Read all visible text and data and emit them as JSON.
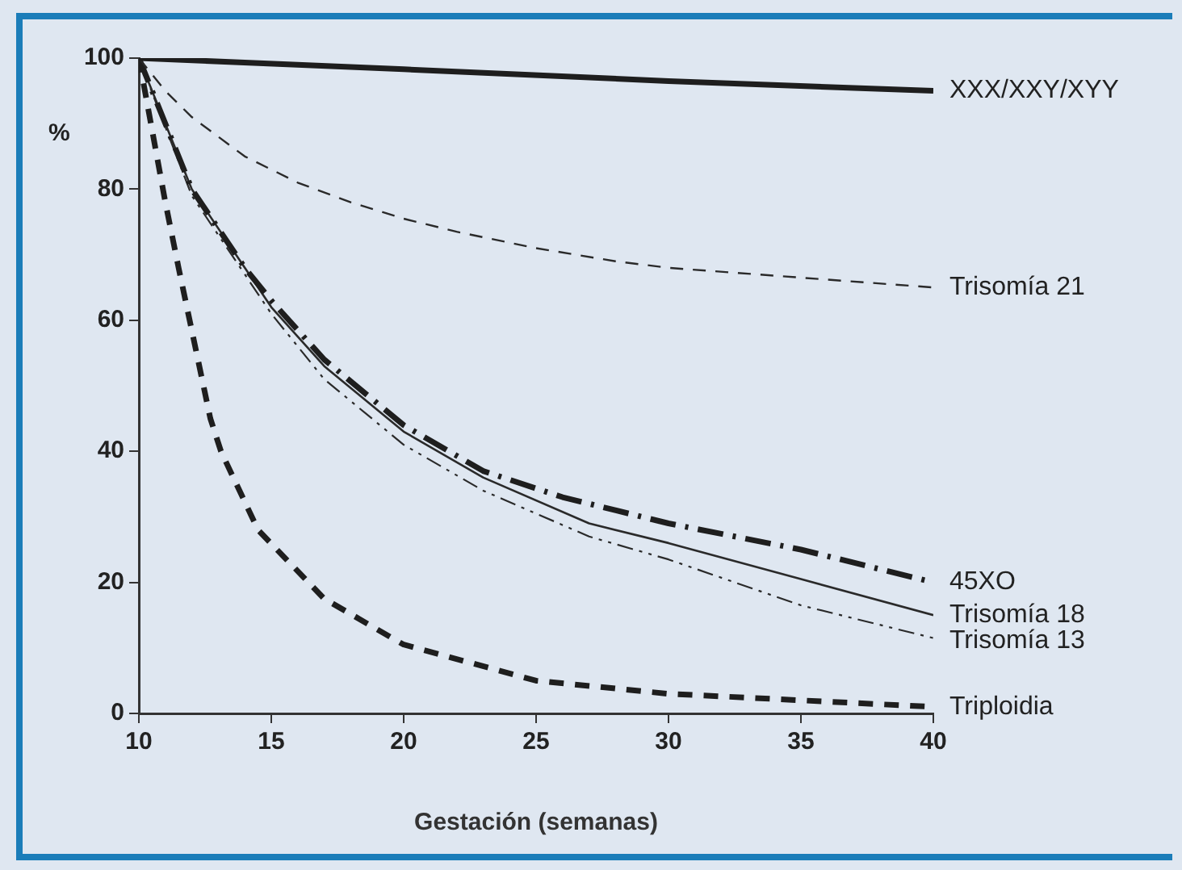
{
  "chart_data": {
    "type": "line",
    "xlabel": "Gestación (semanas)",
    "ylabel": "%",
    "xlim": [
      10,
      40
    ],
    "xticks": [
      10,
      15,
      20,
      25,
      30,
      35,
      40
    ],
    "ylim": [
      0,
      100
    ],
    "yticks": [
      0,
      20,
      40,
      60,
      80,
      100
    ],
    "grid": false,
    "legend": false,
    "marker": "none",
    "series": [
      {
        "name": "XXX/XXY/XYY",
        "color": "#1e1e1e",
        "line_style": "solid",
        "x": [
          10,
          20,
          30,
          40
        ],
        "values": [
          100,
          98.3,
          96.5,
          95
        ]
      },
      {
        "name": "Trisomía 21",
        "color": "#2a2a2a",
        "line_style": "dashed",
        "x": [
          10,
          11,
          12,
          14,
          16,
          18,
          20,
          22,
          25,
          28,
          30,
          35,
          40
        ],
        "values": [
          100,
          95,
          91,
          85,
          81,
          78,
          75.5,
          73.5,
          71,
          69,
          68,
          66.5,
          65
        ]
      },
      {
        "name": "45XO",
        "color": "#1e1e1e",
        "line_style": "dashed",
        "x": [
          10,
          12,
          14,
          15,
          17,
          20,
          23,
          26,
          30,
          35,
          40
        ],
        "values": [
          100,
          80,
          68,
          63,
          54,
          44,
          37,
          33,
          29,
          25,
          20
        ]
      },
      {
        "name": "Trisomía 18",
        "color": "#2a2a2a",
        "line_style": "solid",
        "x": [
          10,
          12,
          14,
          15,
          17,
          20,
          23,
          27,
          30,
          35,
          40
        ],
        "values": [
          100,
          80,
          68,
          62,
          53,
          43,
          36,
          29,
          26,
          20.5,
          15
        ]
      },
      {
        "name": "Trisomía 13",
        "color": "#2a2a2a",
        "line_style": "dashed",
        "x": [
          10,
          12,
          14,
          15,
          17,
          20,
          23,
          27,
          30,
          35,
          40
        ],
        "values": [
          100,
          79,
          67,
          61,
          51,
          41,
          34,
          27,
          23.5,
          16.5,
          11.5
        ]
      },
      {
        "name": "Triploidia",
        "color": "#1e1e1e",
        "line_style": "dashed",
        "x": [
          10,
          11,
          11.5,
          12.7,
          13.1,
          14.5,
          17,
          20,
          25,
          30,
          35,
          40
        ],
        "values": [
          100,
          78,
          68,
          45,
          40,
          28,
          17.5,
          10.5,
          5,
          3,
          2,
          1
        ]
      }
    ]
  }
}
